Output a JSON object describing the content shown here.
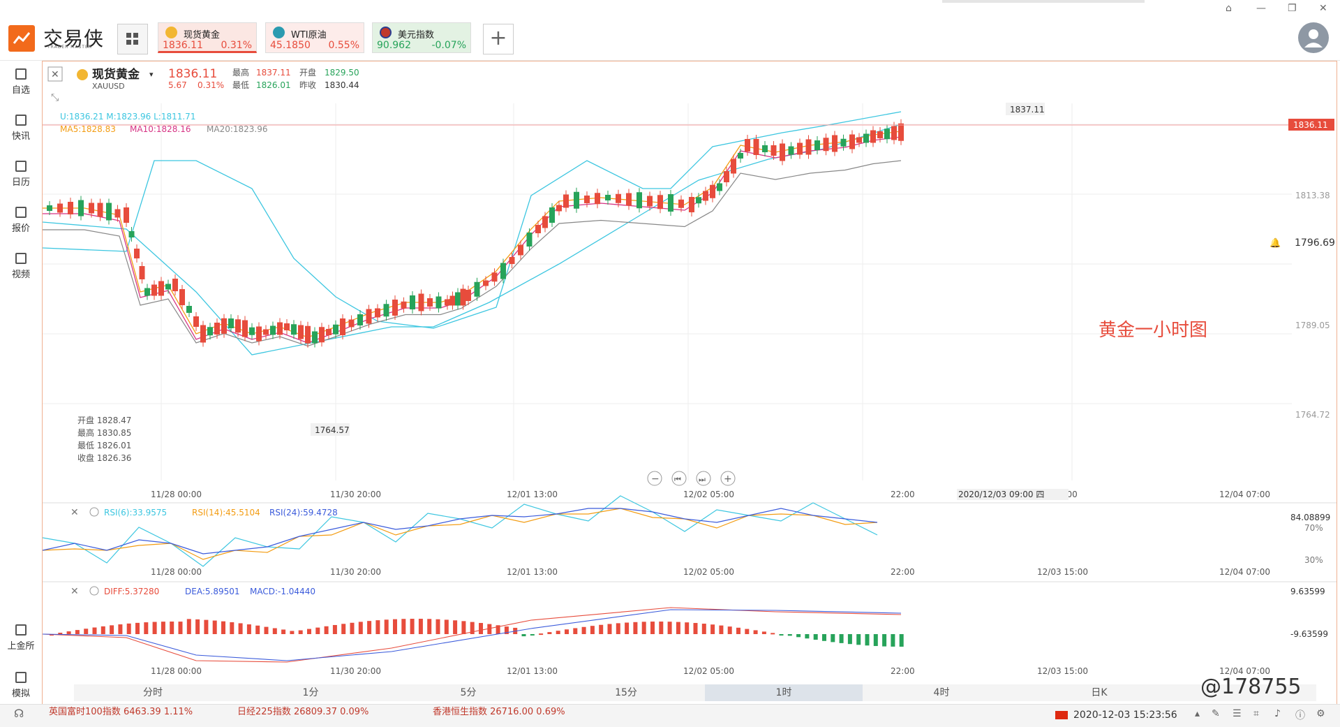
{
  "app": {
    "brand": "交易侠",
    "brand_sub": "TRADER MASTER",
    "window_controls": [
      "⌂",
      "—",
      "❐",
      "✕"
    ]
  },
  "tickers": [
    {
      "name": "现货黄金",
      "price": "1836.11",
      "change": "0.31%",
      "price_color": "#e74c3c",
      "change_color": "#e74c3c"
    },
    {
      "name": "WTI原油",
      "price": "45.1850",
      "change": "0.55%",
      "price_color": "#e74c3c",
      "change_color": "#e74c3c"
    },
    {
      "name": "美元指数",
      "price": "90.962",
      "change": "-0.07%",
      "price_color": "#27a35a",
      "change_color": "#27a35a"
    }
  ],
  "sidebar": {
    "items": [
      {
        "label": "自选",
        "icon": "bookmark-icon"
      },
      {
        "label": "快讯",
        "icon": "news-icon"
      },
      {
        "label": "日历",
        "icon": "calendar-icon"
      },
      {
        "label": "报价",
        "icon": "quote-chart-icon"
      },
      {
        "label": "视频",
        "icon": "video-icon"
      }
    ],
    "bottom": [
      {
        "label": "上金所",
        "icon": "exchange-icon"
      },
      {
        "label": "模拟",
        "icon": "simulate-icon"
      }
    ]
  },
  "header": {
    "symbol_name": "现货黄金",
    "symbol_code": "XAUUSD",
    "price": "1836.11",
    "change": "5.67",
    "change_pct": "0.31%",
    "high_label": "最高",
    "high": "1837.11",
    "low_label": "最低",
    "low": "1826.01",
    "open_label": "开盘",
    "open": "1829.50",
    "prev_label": "昨收",
    "prev": "1830.44"
  },
  "indicators": {
    "boll": "U:1836.21   M:1823.96   L:1811.71",
    "ma5": "MA5:1828.83",
    "ma10": "MA10:1828.16",
    "ma20": "MA20:1823.96"
  },
  "ohlc_box": {
    "open": "开盘 1828.47",
    "high": "最高 1830.85",
    "low": "最低 1826.01",
    "close": "收盘 1826.36"
  },
  "annotations": {
    "high_label": "1837.11",
    "low_label": "1764.57",
    "last_price": "1836.11",
    "alert_price": "1796.69",
    "title_note": "黄金一小时图",
    "crosshair_time": "2020/12/03 09:00 四"
  },
  "colors": {
    "up": "#e74c3c",
    "down": "#27a35a",
    "ma5": "#f39c12",
    "ma10": "#d63384",
    "ma20": "#888888",
    "boll": "#3cc6e0"
  },
  "main_axis": {
    "y_labels": [
      "1813.38",
      "1789.05",
      "1764.72"
    ],
    "x_labels": [
      "11/28 00:00",
      "11/30 20:00",
      "12/01 13:00",
      "12/02 05:00",
      "22:00",
      "/03 15:00",
      "12/04 07:00"
    ]
  },
  "rsi": {
    "rsi6": "RSI(6):33.9575",
    "rsi14": "RSI(14):45.5104",
    "rsi24": "RSI(24):59.4728",
    "y_labels": [
      "84.08899",
      "70%",
      "30%"
    ],
    "x_labels": [
      "11/28 00:00",
      "11/30 20:00",
      "12/01 13:00",
      "12/02 05:00",
      "22:00",
      "12/03 15:00",
      "12/04 07:00"
    ]
  },
  "macd": {
    "diff": "DIFF:5.37280",
    "dea": "DEA:5.89501",
    "macd": "MACD:-1.04440",
    "y_labels": [
      "9.63599",
      "-9.63599"
    ],
    "x_labels": [
      "11/28 00:00",
      "11/30 20:00",
      "12/01 13:00",
      "12/02 05:00",
      "22:00",
      "12/03 15:00",
      "12/04 07:00"
    ]
  },
  "period_tabs": [
    "分时",
    "1分",
    "5分",
    "15分",
    "1时",
    "4时",
    "日K"
  ],
  "active_period": "1时",
  "status": {
    "datetime": "2020-12-03 15:23:56",
    "ticker_tape_1": "英国富时100指数   6463.39   1.11%",
    "ticker_tape_2": "日经225指数   26809.37   0.09%",
    "ticker_tape_3": "香港恒生指数   26716.00   0.69%",
    "watermark": "@178755"
  }
}
